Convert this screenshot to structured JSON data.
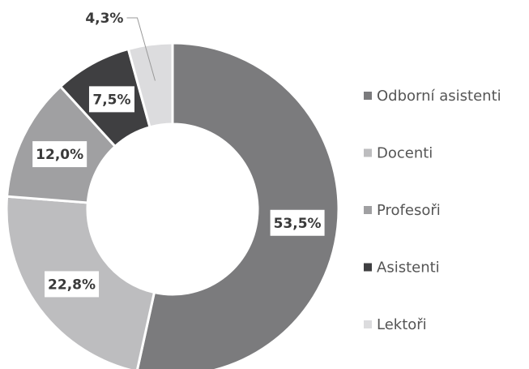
{
  "chart_data": {
    "type": "donut",
    "categories": [
      "Odborní asistenti",
      "Docenti",
      "Profesoři",
      "Asistenti",
      "Lektoři"
    ],
    "values": [
      53.5,
      22.8,
      12.0,
      7.5,
      4.3
    ],
    "value_labels": [
      "53,5%",
      "22,8%",
      "12,0%",
      "7,5%",
      "4,3%"
    ],
    "colors": [
      "#7b7b7d",
      "#bdbdbf",
      "#a0a0a2",
      "#3f3f41",
      "#dcdcde"
    ],
    "legend": "right"
  }
}
